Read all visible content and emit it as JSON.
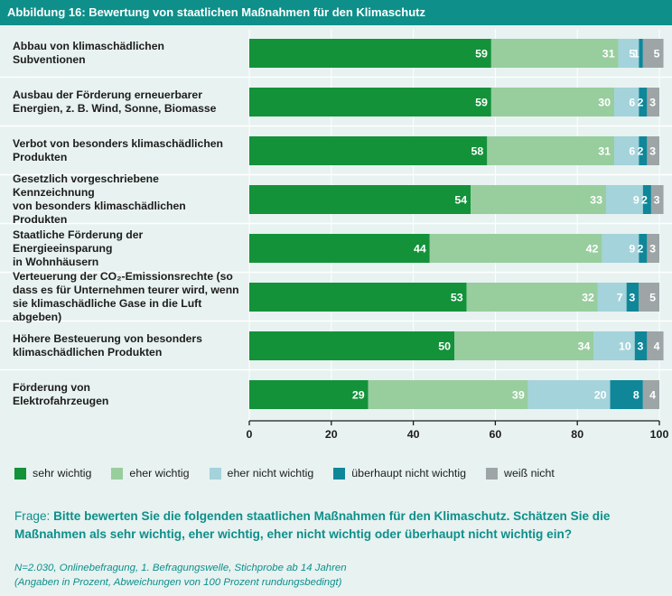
{
  "title": "Abbildung 16: Bewertung von staatlichen Maßnahmen für den Klimaschutz",
  "chart_data": {
    "type": "bar",
    "orientation": "horizontal",
    "stacked": true,
    "categories": [
      "Abbau von klimaschädlichen Subventionen",
      "Ausbau der Förderung erneuerbarer Energien, z. B. Wind, Sonne, Biomasse",
      "Verbot von besonders klimaschädlichen Produkten",
      "Gesetzlich vorgeschriebene Kennzeichnung von besonders klimaschädlichen Produkten",
      "Staatliche Förderung der Energieeinsparung in Wohnhäusern",
      "Verteuerung der CO2-Emissionsrechte (so dass es für Unternehmen teurer wird, wenn sie klimaschädliche Gase in die Luft abgeben)",
      "Höhere Besteuerung von besonders klimaschädlichen Produkten",
      "Förderung von Elektrofahrzeugen"
    ],
    "category_lines": [
      [
        "Abbau von klimaschädlichen",
        "Subventionen"
      ],
      [
        "Ausbau der Förderung erneuerbarer",
        "Energien, z. B. Wind, Sonne, Biomasse"
      ],
      [
        "Verbot von besonders klimaschädlichen",
        "Produkten"
      ],
      [
        "Gesetzlich vorgeschriebene Kennzeichnung",
        "von besonders klimaschädlichen Produkten"
      ],
      [
        "Staatliche Förderung der Energieeinsparung",
        "in Wohnhäusern"
      ],
      [
        "Verteuerung der CO₂-Emissionsrechte (so",
        "dass es für Unternehmen teurer wird, wenn",
        "sie klimaschädliche Gase in die Luft abgeben)"
      ],
      [
        "Höhere Besteuerung von besonders",
        "klimaschädlichen Produkten"
      ],
      [
        "Förderung von",
        "Elektrofahrzeugen"
      ]
    ],
    "series": [
      {
        "name": "sehr wichtig",
        "color": "#13923a",
        "values": [
          59,
          59,
          58,
          54,
          44,
          53,
          50,
          29
        ]
      },
      {
        "name": "eher wichtig",
        "color": "#98cd9e",
        "values": [
          31,
          30,
          31,
          33,
          42,
          32,
          34,
          39
        ]
      },
      {
        "name": "eher nicht wichtig",
        "color": "#a4d3db",
        "values": [
          5,
          6,
          6,
          9,
          9,
          7,
          10,
          20
        ]
      },
      {
        "name": "überhaupt nicht wichtig",
        "color": "#0f8799",
        "values": [
          1,
          2,
          2,
          2,
          2,
          3,
          3,
          8
        ]
      },
      {
        "name": "weiß nicht",
        "color": "#9ea5a6",
        "values": [
          5,
          3,
          3,
          3,
          3,
          5,
          4,
          4
        ]
      }
    ],
    "xlim": [
      0,
      100
    ],
    "xticks": [
      0,
      20,
      40,
      60,
      80,
      100
    ],
    "grid": true,
    "legend_position": "bottom"
  },
  "question": {
    "prefix": "Frage: ",
    "text": "Bitte bewerten Sie die folgenden staatlichen Maßnahmen für den Klimaschutz. Schätzen Sie die Maßnahmen als sehr wichtig, eher wichtig, eher nicht wichtig oder überhaupt nicht wichtig ein?"
  },
  "note_line1": "N=2.030, Onlinebefragung, 1. Befragungswelle, Stichprobe ab 14 Jahren",
  "note_line2": "(Angaben in Prozent, Abweichungen von 100 Prozent rundungsbedingt)"
}
